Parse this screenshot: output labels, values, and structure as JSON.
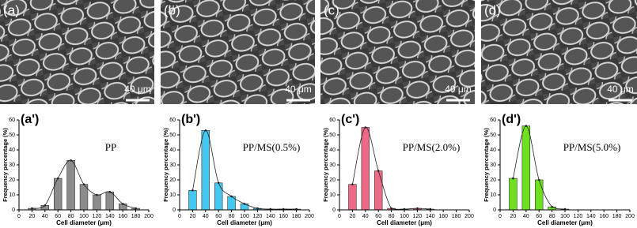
{
  "images": [
    {
      "label": "(a)",
      "scale_bar": "40 μm"
    },
    {
      "label": "(b)",
      "scale_bar": "40 μm"
    },
    {
      "label": "(c)",
      "scale_bar": "40 μm"
    },
    {
      "label": "(d)",
      "scale_bar": "40 μm"
    }
  ],
  "chart_data": [
    {
      "type": "bar",
      "panel_label": "(a')",
      "annotation": "PP",
      "x_label": "Cell diameter (μm)",
      "y_label": "Frequency percentage (%)",
      "x": [
        20,
        40,
        60,
        80,
        100,
        120,
        140,
        160,
        180
      ],
      "values": [
        1,
        3,
        21,
        33,
        17,
        10,
        12,
        4,
        1
      ],
      "color": "#8c8c8c",
      "xlim": [
        0,
        200
      ],
      "xticks": [
        0,
        20,
        40,
        60,
        80,
        100,
        120,
        140,
        160,
        180,
        200
      ],
      "ylim": [
        0,
        60
      ],
      "yticks": [
        0,
        10,
        20,
        30,
        40,
        50,
        60
      ]
    },
    {
      "type": "bar",
      "panel_label": "(b')",
      "annotation": "PP/MS(0.5%)",
      "x_label": "Cell diameter (μm)",
      "y_label": "Frequency percentage (%)",
      "x": [
        20,
        40,
        60,
        80,
        100,
        120,
        140,
        160,
        180
      ],
      "values": [
        13,
        53,
        18,
        9,
        4,
        1,
        0.5,
        0.5,
        0.5
      ],
      "color": "#45c8f0",
      "xlim": [
        0,
        200
      ],
      "xticks": [
        0,
        20,
        40,
        60,
        80,
        100,
        120,
        140,
        160,
        180,
        200
      ],
      "ylim": [
        0,
        60
      ],
      "yticks": [
        0,
        10,
        20,
        30,
        40,
        50,
        60
      ]
    },
    {
      "type": "bar",
      "panel_label": "(c')",
      "annotation": "PP/MS(2.0%)",
      "x_label": "Cell diameter (μm)",
      "y_label": "Frequency percentage (%)",
      "x": [
        20,
        40,
        60,
        80,
        100,
        120,
        140
      ],
      "values": [
        17,
        55,
        26,
        1,
        0.5,
        1,
        0.5
      ],
      "color": "#ec6a86",
      "xlim": [
        0,
        200
      ],
      "xticks": [
        0,
        20,
        40,
        60,
        80,
        100,
        120,
        140,
        160,
        180,
        200
      ],
      "ylim": [
        0,
        60
      ],
      "yticks": [
        0,
        10,
        20,
        30,
        40,
        50,
        60
      ]
    },
    {
      "type": "bar",
      "panel_label": "(d')",
      "annotation": "PP/MS(5.0%)",
      "x_label": "Cell diameter (μm)",
      "y_label": "Frequency percentage (%)",
      "x": [
        20,
        40,
        60,
        80,
        100
      ],
      "values": [
        21,
        56,
        20,
        2,
        0.5
      ],
      "color": "#6ee020",
      "xlim": [
        0,
        200
      ],
      "xticks": [
        0,
        20,
        40,
        60,
        80,
        100,
        120,
        140,
        160,
        180,
        200
      ],
      "ylim": [
        0,
        60
      ],
      "yticks": [
        0,
        10,
        20,
        30,
        40,
        50,
        60
      ]
    }
  ]
}
